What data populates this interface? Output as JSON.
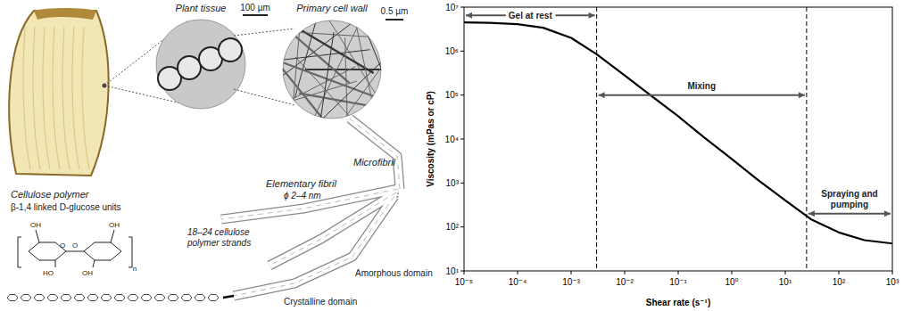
{
  "diagram": {
    "labels": {
      "plant_tissue": "Plant tissue",
      "scale_tissue": "100 µm",
      "cell_wall": "Primary cell wall",
      "scale_wall": "0.5 µm",
      "microfibril": "Microfibril",
      "elementary_fibril": "Elementary fibril",
      "diameter": "ϕ 2–4 nm",
      "strands": "18–24 cellulose polymer strands",
      "amorphous": "Amorphous domain",
      "crystalline": "Crystalline domain",
      "polymer": "Cellulose polymer",
      "glucose": "β-1,4 linked D-glucose units"
    },
    "structure_labels": [
      "OH",
      "HO",
      "O",
      "OH",
      "O",
      "OH",
      "n"
    ]
  },
  "chart_data": {
    "type": "line",
    "x_label": "Shear rate (s⁻¹)",
    "y_label": "Viscosity (mPas or cP)",
    "x": [
      1e-05,
      3e-05,
      0.0001,
      0.0003,
      0.001,
      0.003,
      0.01,
      0.03,
      0.1,
      0.3,
      1,
      3,
      10,
      30,
      100,
      300,
      1000
    ],
    "values": [
      4500000,
      4400000,
      4100000,
      3400000,
      2000000,
      850000,
      280000,
      100000,
      33000,
      11000,
      3500,
      1200,
      400,
      150,
      75,
      50,
      42
    ],
    "color": "#000000",
    "log": true,
    "grid": false,
    "xlim": [
      1e-05,
      1000
    ],
    "ylim": [
      10,
      10000000
    ],
    "xticks": [
      {
        "value": 1e-05,
        "label": "10⁻⁵"
      },
      {
        "value": 0.0001,
        "label": "10⁻⁴"
      },
      {
        "value": 0.001,
        "label": "10⁻³"
      },
      {
        "value": 0.01,
        "label": "10⁻²"
      },
      {
        "value": 0.1,
        "label": "10⁻¹"
      },
      {
        "value": 1,
        "label": "10⁰"
      },
      {
        "value": 10,
        "label": "10¹"
      },
      {
        "value": 100,
        "label": "10²"
      },
      {
        "value": 1000,
        "label": "10³"
      }
    ],
    "yticks": [
      {
        "value": 10,
        "label": "10¹"
      },
      {
        "value": 100,
        "label": "10²"
      },
      {
        "value": 1000,
        "label": "10³"
      },
      {
        "value": 10000,
        "label": "10⁴"
      },
      {
        "value": 100000,
        "label": "10⁵"
      },
      {
        "value": 1000000,
        "label": "10⁶"
      },
      {
        "value": 10000000,
        "label": "10⁷"
      }
    ],
    "vlines": [
      0.003,
      25
    ],
    "annotations": [
      {
        "text": "Gel at rest",
        "x": [
          1e-05,
          0.003
        ],
        "y": 6500000
      },
      {
        "text": "Mixing",
        "x": [
          0.003,
          25
        ],
        "y": 100000
      },
      {
        "text": "Spraying and pumping",
        "x": [
          25,
          1000
        ],
        "y": 200
      }
    ]
  }
}
